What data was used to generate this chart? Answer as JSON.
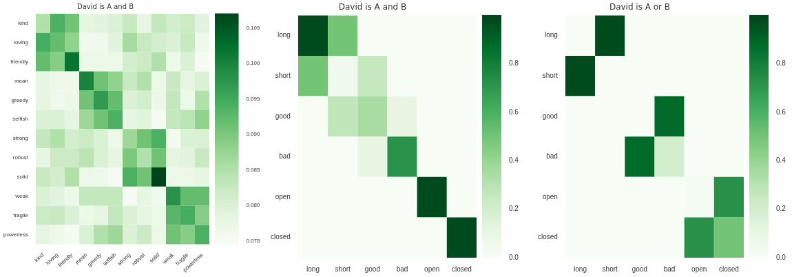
{
  "chart_data": [
    {
      "type": "heatmap",
      "title": "David is A and B",
      "categories": [
        "kind",
        "loving",
        "friendly",
        "mean",
        "greedy",
        "selfish",
        "strong",
        "robust",
        "solid",
        "weak",
        "fragile",
        "powerless"
      ],
      "y_categories": [
        "kind",
        "loving",
        "friendly",
        "mean",
        "greedy",
        "selfish",
        "strong",
        "robust",
        "solid",
        "weak",
        "fragile",
        "powerless"
      ],
      "cells": [
        [
          0.085,
          0.094,
          0.091,
          0.078,
          0.079,
          0.08,
          0.0825,
          0.078,
          0.083,
          0.081,
          0.082,
          0.079
        ],
        [
          0.0945,
          0.092,
          0.088,
          0.076,
          0.076,
          0.079,
          0.086,
          0.0825,
          0.081,
          0.08,
          0.0825,
          0.0765
        ],
        [
          0.092,
          0.089,
          0.102,
          0.077,
          0.077,
          0.077,
          0.081,
          0.082,
          0.085,
          0.077,
          0.08,
          0.075
        ],
        [
          0.078,
          0.0765,
          0.0765,
          0.1,
          0.091,
          0.088,
          0.0825,
          0.085,
          0.077,
          0.0825,
          0.078,
          0.08
        ],
        [
          0.078,
          0.076,
          0.077,
          0.091,
          0.097,
          0.092,
          0.08,
          0.081,
          0.077,
          0.083,
          0.077,
          0.085
        ],
        [
          0.08,
          0.08,
          0.078,
          0.087,
          0.091,
          0.094,
          0.078,
          0.079,
          0.075,
          0.083,
          0.084,
          0.088
        ],
        [
          0.083,
          0.085,
          0.081,
          0.082,
          0.08,
          0.077,
          0.087,
          0.091,
          0.094,
          0.0755,
          0.08,
          0.08
        ],
        [
          0.078,
          0.082,
          0.082,
          0.084,
          0.08,
          0.078,
          0.09,
          0.085,
          0.091,
          0.078,
          0.079,
          0.0825
        ],
        [
          0.0825,
          0.081,
          0.085,
          0.077,
          0.0765,
          0.075,
          0.094,
          0.091,
          0.107,
          0.077,
          0.077,
          0.078
        ],
        [
          0.08,
          0.079,
          0.077,
          0.083,
          0.083,
          0.083,
          0.075,
          0.078,
          0.076,
          0.098,
          0.092,
          0.092
        ],
        [
          0.082,
          0.0825,
          0.08,
          0.077,
          0.078,
          0.083,
          0.08,
          0.078,
          0.077,
          0.093,
          0.0945,
          0.089
        ],
        [
          0.078,
          0.0765,
          0.0755,
          0.08,
          0.085,
          0.087,
          0.08,
          0.082,
          0.077,
          0.091,
          0.089,
          0.094
        ]
      ],
      "clim": [
        0.0745,
        0.107
      ],
      "cticks": [
        {
          "value": 0.075,
          "label": "0.075"
        },
        {
          "value": 0.08,
          "label": "0.080"
        },
        {
          "value": 0.085,
          "label": "0.085"
        },
        {
          "value": 0.09,
          "label": "0.090"
        },
        {
          "value": 0.095,
          "label": "0.095"
        },
        {
          "value": 0.1,
          "label": "0.100"
        },
        {
          "value": 0.105,
          "label": "0.105"
        }
      ]
    },
    {
      "type": "heatmap",
      "title": "David is A and B",
      "categories": [
        "long",
        "short",
        "good",
        "bad",
        "open",
        "closed"
      ],
      "y_categories": [
        "long",
        "short",
        "good",
        "bad",
        "open",
        "closed"
      ],
      "cells": [
        [
          0.98,
          0.5,
          0,
          0,
          0,
          0
        ],
        [
          0.5,
          0.05,
          0.25,
          0,
          0,
          0
        ],
        [
          0,
          0.27,
          0.35,
          0.1,
          0,
          0
        ],
        [
          0,
          0,
          0.1,
          0.72,
          0,
          0
        ],
        [
          0,
          0,
          0,
          0,
          0.98,
          0
        ],
        [
          0,
          0,
          0,
          0,
          0,
          0.98
        ]
      ],
      "clim": [
        0,
        1
      ],
      "cticks": [
        {
          "value": 0,
          "label": "0.0"
        },
        0.2,
        0.4,
        0.6,
        0.8
      ]
    },
    {
      "type": "heatmap",
      "title": "David is A or B",
      "categories": [
        "long",
        "short",
        "good",
        "bad",
        "open",
        "closed"
      ],
      "y_categories": [
        "long",
        "short",
        "good",
        "bad",
        "open",
        "closed"
      ],
      "cells": [
        [
          0,
          0.98,
          0,
          0,
          0,
          0
        ],
        [
          0.98,
          0,
          0,
          0,
          0,
          0
        ],
        [
          0,
          0,
          0,
          0.88,
          0,
          0
        ],
        [
          0,
          0,
          0.88,
          0.2,
          0,
          0
        ],
        [
          0,
          0,
          0,
          0,
          0.02,
          0.73
        ],
        [
          0,
          0,
          0,
          0,
          0.73,
          0.5
        ]
      ],
      "clim": [
        0,
        1
      ],
      "cticks": [
        {
          "value": 0,
          "label": "0.0"
        },
        0.2,
        0.4,
        0.6,
        0.8
      ]
    }
  ]
}
